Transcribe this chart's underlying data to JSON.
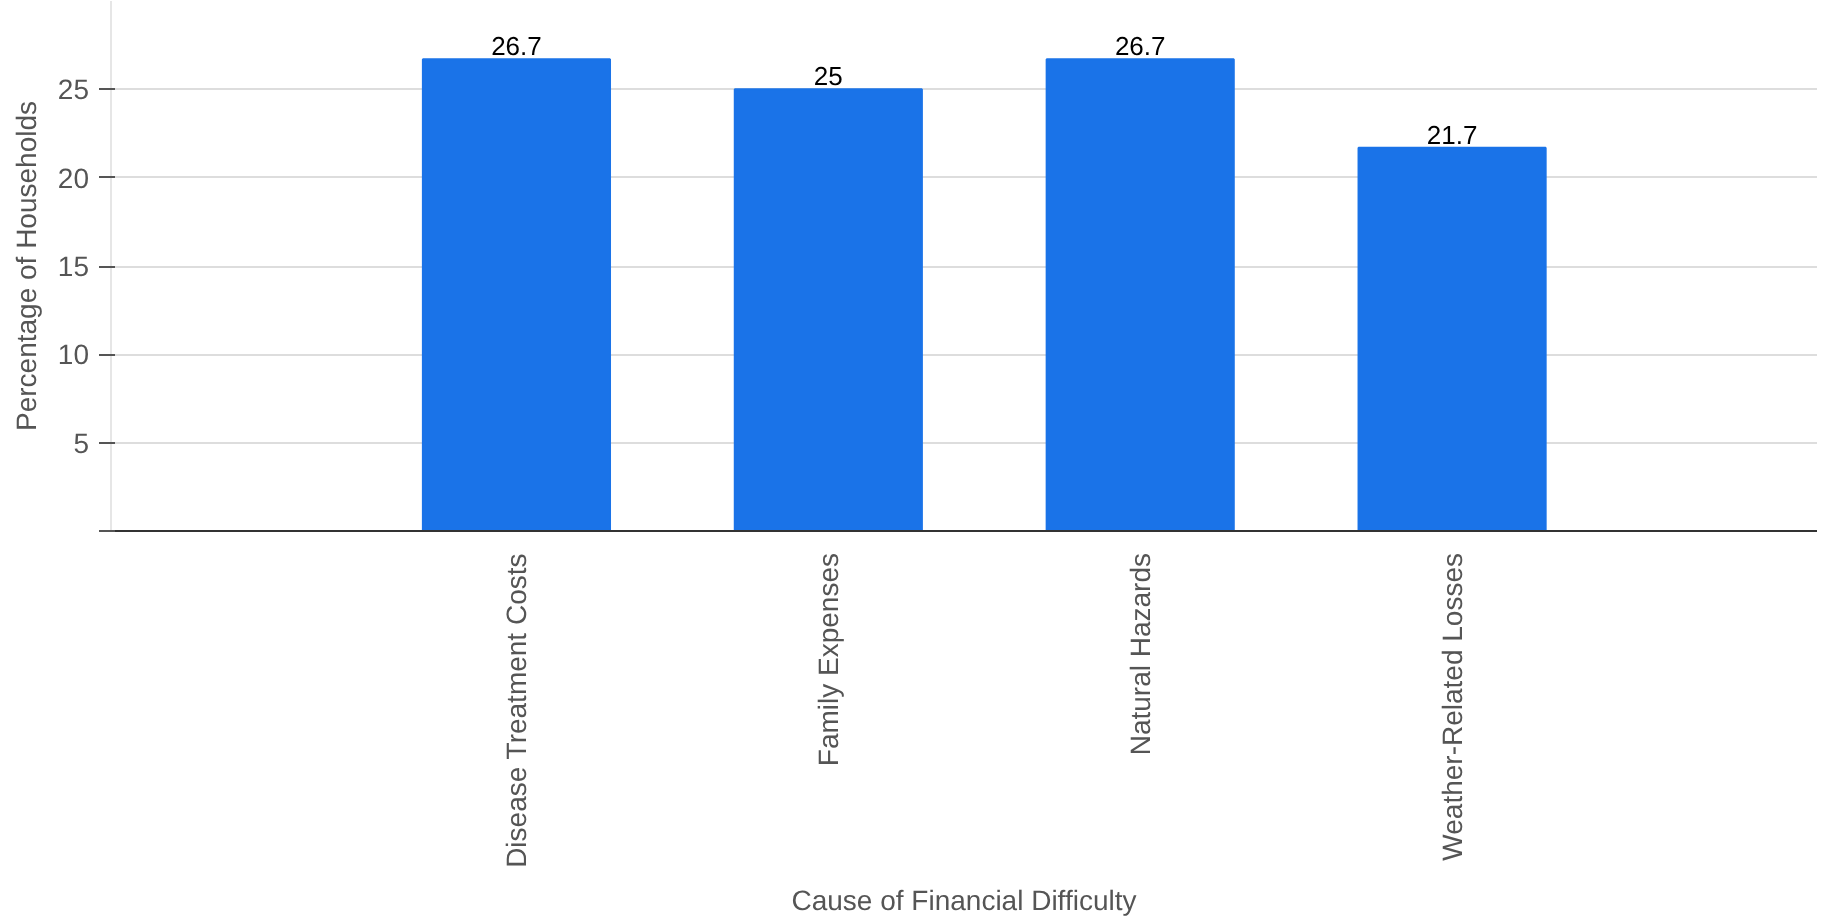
{
  "chart_data": {
    "type": "bar",
    "xlabel": "Cause of Financial Difficulty",
    "ylabel": "Percentage of Households",
    "categories": [
      "Disease Treatment Costs",
      "Family Expenses",
      "Natural Hazards",
      "Weather-Related Losses"
    ],
    "values": [
      26.7,
      25,
      26.7,
      21.7
    ],
    "color": "#1a73e8",
    "data_labels": true,
    "ylim": [
      0,
      30
    ],
    "yticks": [
      {
        "value": 0,
        "label": null
      },
      5,
      10,
      15,
      20,
      25
    ],
    "grid": "y"
  }
}
